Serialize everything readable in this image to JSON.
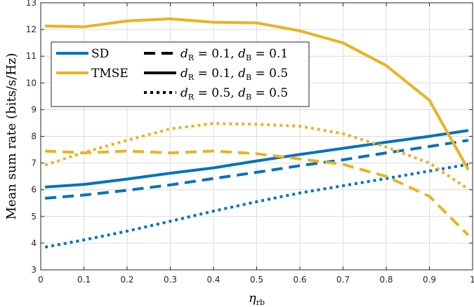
{
  "chart_data": {
    "type": "line",
    "title": "",
    "xlabel": "η",
    "xlabel_sub": "rb",
    "ylabel": "Mean sum rate (bits/s/Hz)",
    "xlim": [
      0,
      1
    ],
    "ylim": [
      3,
      13
    ],
    "xticks": [
      0,
      0.1,
      0.2,
      0.3,
      0.4,
      0.5,
      0.6,
      0.7,
      0.8,
      0.9,
      1
    ],
    "xtick_labels": [
      "0",
      "0.1",
      "0.2",
      "0.3",
      "0.4",
      "0.5",
      "0.6",
      "0.7",
      "0.8",
      "0.9",
      "1"
    ],
    "yticks": [
      3,
      4,
      5,
      6,
      7,
      8,
      9,
      10,
      11,
      12,
      13
    ],
    "ytick_labels": [
      "3",
      "4",
      "5",
      "6",
      "7",
      "8",
      "9",
      "10",
      "11",
      "12",
      "13"
    ],
    "grid": true,
    "legend_position": "top-left",
    "colors": {
      "SD": "#0072BD",
      "TMSE": "#EDB120"
    },
    "legend": {
      "methods": [
        {
          "name": "SD",
          "color": "#0072BD"
        },
        {
          "name": "TMSE",
          "color": "#EDB120"
        }
      ],
      "configs": [
        {
          "style": "dashed",
          "d": "d",
          "sub_r": "R",
          "eq1": " = 0.1, ",
          "sub_b": "B",
          "eq2": " = 0.1"
        },
        {
          "style": "solid",
          "d": "d",
          "sub_r": "R",
          "eq1": " = 0.1, ",
          "sub_b": "B",
          "eq2": " = 0.5"
        },
        {
          "style": "dotted",
          "d": "d",
          "sub_r": "R",
          "eq1": " = 0.5, ",
          "sub_b": "B",
          "eq2": " = 0.5"
        }
      ]
    },
    "series": [
      {
        "name": "SD dR=0.1 dB=0.5",
        "method": "SD",
        "style": "solid",
        "x": [
          0.01,
          0.1,
          0.2,
          0.3,
          0.4,
          0.5,
          0.6,
          0.7,
          0.8,
          0.9,
          0.99
        ],
        "y": [
          6.1,
          6.2,
          6.4,
          6.62,
          6.82,
          7.08,
          7.32,
          7.55,
          7.78,
          8.0,
          8.22
        ]
      },
      {
        "name": "SD dR=0.1 dB=0.1",
        "method": "SD",
        "style": "dashed",
        "x": [
          0.01,
          0.1,
          0.2,
          0.3,
          0.4,
          0.5,
          0.6,
          0.7,
          0.8,
          0.9,
          0.99
        ],
        "y": [
          5.68,
          5.8,
          5.98,
          6.18,
          6.42,
          6.65,
          6.9,
          7.12,
          7.38,
          7.62,
          7.85
        ]
      },
      {
        "name": "SD dR=0.5 dB=0.5",
        "method": "SD",
        "style": "dotted",
        "x": [
          0.01,
          0.1,
          0.2,
          0.3,
          0.4,
          0.5,
          0.6,
          0.7,
          0.8,
          0.9,
          0.99
        ],
        "y": [
          3.85,
          4.12,
          4.45,
          4.82,
          5.2,
          5.55,
          5.88,
          6.15,
          6.42,
          6.7,
          6.95
        ]
      },
      {
        "name": "TMSE dR=0.1 dB=0.5",
        "method": "TMSE",
        "style": "solid",
        "x": [
          0.01,
          0.1,
          0.2,
          0.3,
          0.4,
          0.5,
          0.6,
          0.7,
          0.8,
          0.9,
          0.99
        ],
        "y": [
          12.13,
          12.1,
          12.32,
          12.4,
          12.27,
          12.25,
          11.95,
          11.5,
          10.65,
          9.35,
          6.75
        ]
      },
      {
        "name": "TMSE dR=0.1 dB=0.1",
        "method": "TMSE",
        "style": "dashed",
        "x": [
          0.01,
          0.1,
          0.2,
          0.3,
          0.4,
          0.5,
          0.6,
          0.7,
          0.8,
          0.9,
          0.99
        ],
        "y": [
          7.45,
          7.38,
          7.45,
          7.38,
          7.45,
          7.35,
          7.15,
          6.95,
          6.5,
          5.75,
          4.3
        ]
      },
      {
        "name": "TMSE dR=0.5 dB=0.5",
        "method": "TMSE",
        "style": "dotted",
        "x": [
          0.01,
          0.1,
          0.2,
          0.3,
          0.4,
          0.5,
          0.6,
          0.7,
          0.8,
          0.9,
          0.99
        ],
        "y": [
          6.92,
          7.4,
          7.85,
          8.28,
          8.48,
          8.45,
          8.38,
          8.1,
          7.6,
          7.0,
          6.02
        ]
      }
    ]
  }
}
